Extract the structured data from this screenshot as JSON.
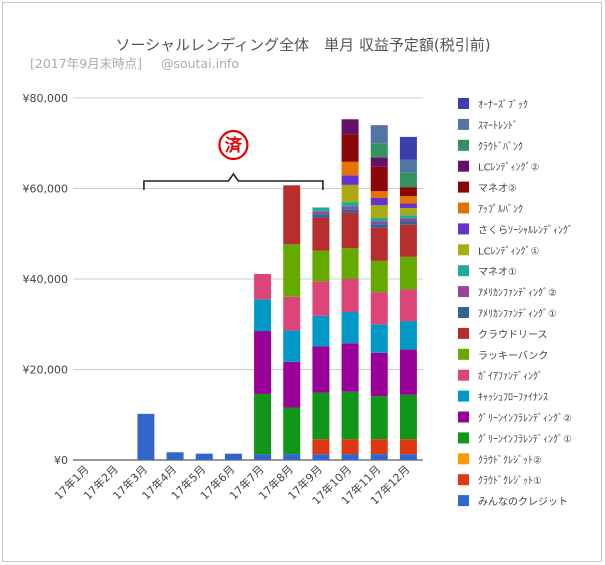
{
  "chart_data": {
    "type": "bar",
    "stacked": true,
    "title": "ソーシャルレンディング全体　単月 収益予定額(税引前)",
    "subtitle": "[2017年9月末時点]",
    "credit": "@soutai.info",
    "stamp": "済",
    "xlabel": "",
    "ylabel": "",
    "ylim": [
      0,
      80000
    ],
    "yticks": [
      "¥0",
      "¥20,000",
      "¥40,000",
      "¥60,000",
      "¥80,000"
    ],
    "ytick_values": [
      0,
      20000,
      40000,
      60000,
      80000
    ],
    "grid": true,
    "legend_position": "right",
    "categories": [
      "17年1月",
      "17年2月",
      "17年3月",
      "17年4月",
      "17年5月",
      "17年6月",
      "17年7月",
      "17年8月",
      "17年9月",
      "17年10月",
      "17年11月",
      "17年12月"
    ],
    "bracket_range": [
      "17年3月",
      "17年9月"
    ],
    "series": [
      {
        "name": "みんなのクレジット",
        "color": "#3366cc",
        "values": [
          0,
          0,
          10200,
          1700,
          1400,
          1400,
          1300,
          1300,
          1300,
          1300,
          1300,
          1300
        ]
      },
      {
        "name": "ｸﾗｳﾄﾞｸﾚｼﾞｯﾄ①",
        "color": "#dc3912",
        "values": [
          0,
          0,
          0,
          0,
          0,
          0,
          0,
          0,
          3300,
          3300,
          3300,
          3300
        ]
      },
      {
        "name": "ｸﾗｳﾄﾞｸﾚｼﾞｯﾄ②",
        "color": "#ff9900",
        "values": [
          0,
          0,
          0,
          0,
          0,
          0,
          0,
          0,
          0,
          0,
          0,
          0
        ]
      },
      {
        "name": "ｸﾞﾘｰﾝｲﾝﾌﾗﾚﾝﾃﾞｨﾝｸﾞ①",
        "color": "#109618",
        "values": [
          0,
          0,
          0,
          0,
          0,
          0,
          13300,
          10300,
          10300,
          10500,
          9500,
          9800
        ]
      },
      {
        "name": "ｸﾞﾘｰﾝｲﾝﾌﾗﾚﾝﾃﾞｨﾝｸﾞ②",
        "color": "#990099",
        "values": [
          0,
          0,
          0,
          0,
          0,
          0,
          13900,
          10100,
          10200,
          10700,
          9600,
          10000
        ]
      },
      {
        "name": "ｷｬｯｼｭﾌﾛｰﾌｧｲﾅﾝｽ",
        "color": "#0099c6",
        "values": [
          0,
          0,
          0,
          0,
          0,
          0,
          7000,
          6900,
          6800,
          6900,
          6300,
          6300
        ]
      },
      {
        "name": "ｶﾞｲｱﾌｧﾝﾃﾞｨﾝｸﾞ",
        "color": "#dd4477",
        "values": [
          0,
          0,
          0,
          0,
          0,
          0,
          5600,
          7500,
          7600,
          7300,
          7100,
          7000
        ]
      },
      {
        "name": "ラッキーバンク",
        "color": "#66aa00",
        "values": [
          0,
          0,
          0,
          0,
          0,
          0,
          0,
          11600,
          6800,
          6800,
          6900,
          7200
        ]
      },
      {
        "name": "クラウドリース",
        "color": "#b82e2e",
        "values": [
          0,
          0,
          0,
          0,
          0,
          0,
          0,
          13000,
          7200,
          7800,
          7300,
          7100
        ]
      },
      {
        "name": "ｱﾒﾘｶﾝﾌｧﾝﾃﾞｨﾝｸﾞ①",
        "color": "#316395",
        "values": [
          0,
          0,
          0,
          0,
          0,
          0,
          0,
          0,
          800,
          800,
          800,
          800
        ]
      },
      {
        "name": "ｱﾒﾘｶﾝﾌｧﾝﾃﾞｨﾝｸﾞ②",
        "color": "#994499",
        "values": [
          0,
          0,
          0,
          0,
          0,
          0,
          0,
          0,
          600,
          600,
          600,
          600
        ]
      },
      {
        "name": "マネオ①",
        "color": "#22aa99",
        "values": [
          0,
          0,
          0,
          0,
          0,
          0,
          0,
          0,
          900,
          1000,
          800,
          700
        ]
      },
      {
        "name": "LCﾚﾝﾃﾞｨﾝｸﾞ①",
        "color": "#aaaa11",
        "values": [
          0,
          0,
          0,
          0,
          0,
          0,
          0,
          0,
          0,
          3800,
          2800,
          1600
        ]
      },
      {
        "name": "さくらｿｰｼｬﾙﾚﾝﾃﾞｨﾝｸﾞ",
        "color": "#6633cc",
        "values": [
          0,
          0,
          0,
          0,
          0,
          0,
          0,
          0,
          0,
          2100,
          1600,
          1000
        ]
      },
      {
        "name": "ｱｯﾌﾟﾙﾊﾞﾝｸ",
        "color": "#e67300",
        "values": [
          0,
          0,
          0,
          0,
          0,
          0,
          0,
          0,
          0,
          3000,
          1500,
          1600
        ]
      },
      {
        "name": "マネオ②",
        "color": "#8b0707",
        "values": [
          0,
          0,
          0,
          0,
          0,
          0,
          0,
          0,
          0,
          6100,
          5400,
          2000
        ]
      },
      {
        "name": "LCﾚﾝﾃﾞｨﾝｸﾞ②",
        "color": "#651067",
        "values": [
          0,
          0,
          0,
          0,
          0,
          0,
          0,
          0,
          0,
          3300,
          2100,
          0
        ]
      },
      {
        "name": "ｸﾗｳﾄﾞﾊﾞﾝｸ",
        "color": "#329262",
        "values": [
          0,
          0,
          0,
          0,
          0,
          0,
          0,
          0,
          0,
          0,
          3100,
          3300
        ]
      },
      {
        "name": "ｽﾏｰﾄﾚﾝﾄﾞ",
        "color": "#5574a6",
        "values": [
          0,
          0,
          0,
          0,
          0,
          0,
          0,
          0,
          0,
          0,
          4000,
          2800
        ]
      },
      {
        "name": "ｵｰﾅｰｽﾞﾌﾞｯｸ",
        "color": "#3b3eac",
        "values": [
          0,
          0,
          0,
          0,
          0,
          0,
          0,
          0,
          0,
          0,
          0,
          5000
        ]
      }
    ]
  }
}
